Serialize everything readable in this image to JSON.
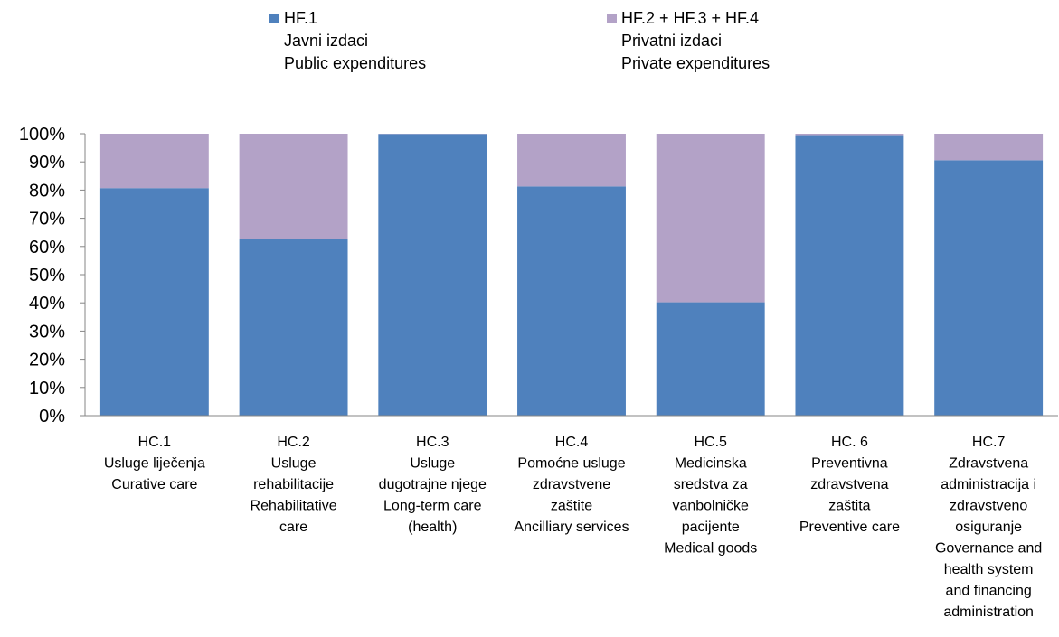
{
  "legend": {
    "public": {
      "code": "HF.1",
      "label_local": "Javni izdaci",
      "label_en": "Public expenditures",
      "color": "#4f81bd"
    },
    "private": {
      "code": "HF.2 + HF.3 + HF.4",
      "label_local": "Privatni izdaci",
      "label_en": "Private expenditures",
      "color": "#b3a2c7"
    }
  },
  "chart_data": {
    "type": "bar",
    "stacked": true,
    "percent": true,
    "ylim": [
      0,
      100
    ],
    "yticks": [
      "0%",
      "10%",
      "20%",
      "30%",
      "40%",
      "50%",
      "60%",
      "70%",
      "80%",
      "90%",
      "100%"
    ],
    "categories": [
      [
        "HC.1",
        "Usluge liječenja",
        "Curative care"
      ],
      [
        "HC.2",
        "Usluge",
        "rehabilitacije",
        "Rehabilitative",
        "care"
      ],
      [
        "HC.3",
        "Usluge",
        "dugotrajne njege",
        "Long-term care",
        "(health)"
      ],
      [
        "HC.4",
        "Pomoćne usluge",
        "zdravstvene",
        "zaštite",
        "Ancilliary services"
      ],
      [
        "HC.5",
        "Medicinska",
        "sredstva za",
        "vanbolničke",
        "pacijente",
        "Medical goods"
      ],
      [
        "HC. 6",
        "Preventivna",
        "zdravstvena",
        "zaštita",
        "Preventive care"
      ],
      [
        "HC.7",
        "Zdravstvena",
        "administracija i",
        "zdravstveno",
        "osiguranje",
        "Governance and",
        "health system",
        "and financing",
        "administration"
      ]
    ],
    "series": [
      {
        "name": "HF.1",
        "color": "#4f81bd",
        "values": [
          80.7,
          62.7,
          99.9,
          81.3,
          40.2,
          99.5,
          90.6
        ]
      },
      {
        "name": "HF.2 + HF.3 + HF.4",
        "color": "#b3a2c7",
        "values": [
          19.3,
          37.3,
          0.1,
          18.7,
          59.8,
          0.5,
          9.4
        ]
      }
    ]
  }
}
